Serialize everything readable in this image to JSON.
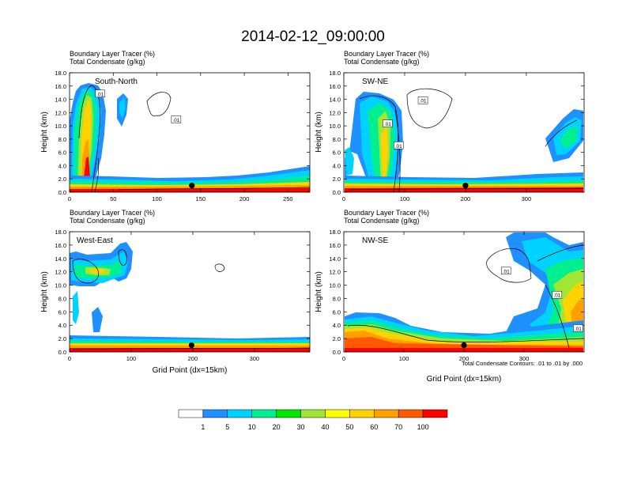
{
  "figure_title": "2014-02-12_09:00:00",
  "palette": [
    "#ffffff",
    "#1e90ff",
    "#00d2ff",
    "#00f090",
    "#00e600",
    "#a0e632",
    "#ffff00",
    "#ffd200",
    "#ffa000",
    "#ff5a00",
    "#ff0000"
  ],
  "colorbar": {
    "labels": [
      "1",
      "5",
      "10",
      "20",
      "30",
      "40",
      "50",
      "60",
      "70",
      "100"
    ]
  },
  "footnote": "Total Condensate Contours: .01 to .01 by .000",
  "chart_data": [
    {
      "type": "heatmap",
      "id": "south-north",
      "title_line1": "Boundary Layer Tracer   (%)",
      "title_line2": "Total Condensate   (g/kg)",
      "panel_label": "South-North",
      "ylabel": "Height (km)",
      "xlabel": "",
      "xlim": [
        0,
        275
      ],
      "ylim": [
        0,
        18
      ],
      "xticks": [
        "0",
        "50",
        "100",
        "150",
        "200",
        "250"
      ],
      "xtick_values": [
        0,
        50,
        100,
        150,
        200,
        250
      ],
      "yticks": [
        "0.0",
        "2.0",
        "4.0",
        "6.0",
        "8.0",
        "10.0",
        "12.0",
        "14.0",
        "16.0",
        "18.0"
      ],
      "marker": {
        "x": 140,
        "y": 1.0
      },
      "contour_labels": [
        {
          "text": ".01",
          "x": 35,
          "y": 14.8
        },
        {
          "text": ".01",
          "x": 122,
          "y": 10.9
        }
      ]
    },
    {
      "type": "heatmap",
      "id": "sw-ne",
      "title_line1": "Boundary Layer Tracer   (%)",
      "title_line2": "Total Condensate   (g/kg)",
      "panel_label": "SW-NE",
      "ylabel": "Height (km)",
      "xlabel": "",
      "xlim": [
        0,
        395
      ],
      "ylim": [
        0,
        18
      ],
      "xticks": [
        "0",
        "100",
        "200",
        "300"
      ],
      "xtick_values": [
        0,
        100,
        200,
        300
      ],
      "yticks": [
        "0.0",
        "2.0",
        "4.0",
        "6.0",
        "8.0",
        "10.0",
        "12.0",
        "14.0",
        "16.0",
        "18.0"
      ],
      "marker": {
        "x": 200,
        "y": 1.0
      },
      "contour_labels": [
        {
          "text": ".01",
          "x": 72,
          "y": 10.3
        },
        {
          "text": ".01",
          "x": 90,
          "y": 7.0
        },
        {
          "text": ".01",
          "x": 130,
          "y": 13.8
        }
      ]
    },
    {
      "type": "heatmap",
      "id": "west-east",
      "title_line1": "Boundary Layer Tracer   (%)",
      "title_line2": "Total Condensate   (g/kg)",
      "panel_label": "West-East",
      "ylabel": "Height (km)",
      "xlabel": "Grid Point (dx=15km)",
      "xlim": [
        0,
        390
      ],
      "ylim": [
        0,
        18
      ],
      "xticks": [
        "0",
        "100",
        "200",
        "300"
      ],
      "xtick_values": [
        0,
        100,
        200,
        300
      ],
      "yticks": [
        "0.0",
        "2.0",
        "4.0",
        "6.0",
        "8.0",
        "10.0",
        "12.0",
        "14.0",
        "16.0",
        "18.0"
      ],
      "marker": {
        "x": 198,
        "y": 1.0
      },
      "contour_labels": []
    },
    {
      "type": "heatmap",
      "id": "nw-se",
      "title_line1": "Boundary Layer Tracer   (%)",
      "title_line2": "Total Condensate   (g/kg)",
      "panel_label": "NW-SE",
      "ylabel": "Height (km)",
      "xlabel": "Grid Point (dx=15km)",
      "xlim": [
        0,
        400
      ],
      "ylim": [
        0,
        18
      ],
      "xticks": [
        "0",
        "100",
        "200",
        "300"
      ],
      "xtick_values": [
        0,
        100,
        200,
        300
      ],
      "yticks": [
        "0.0",
        "2.0",
        "4.0",
        "6.0",
        "8.0",
        "10.0",
        "12.0",
        "14.0",
        "16.0",
        "18.0"
      ],
      "marker": {
        "x": 200,
        "y": 1.0
      },
      "contour_labels": [
        {
          "text": ".01",
          "x": 270,
          "y": 12.1
        },
        {
          "text": ".01",
          "x": 355,
          "y": 8.5
        },
        {
          "text": ".01",
          "x": 390,
          "y": 3.5
        }
      ]
    }
  ]
}
